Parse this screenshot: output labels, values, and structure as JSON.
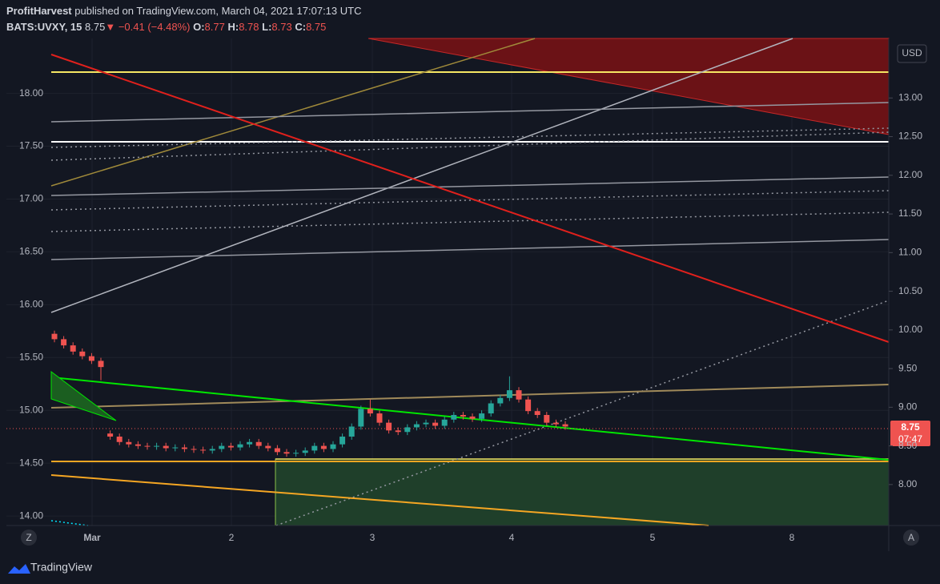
{
  "header": {
    "author": "ProfitHarvest",
    "published": "published on TradingView.com, March 04, 2021 17:07:13 UTC",
    "symbol": "BATS:UVXY, 15",
    "last": "8.75",
    "arrow": "▼",
    "change": "−0.41 (−4.48%)",
    "o_label": "O:",
    "o": "8.77",
    "h_label": "H:",
    "h": "8.78",
    "l_label": "L:",
    "l": "8.73",
    "c_label": "C:",
    "c": "8.75"
  },
  "chart_data": {
    "type": "candlestick",
    "currency": "USD",
    "xlabels": [
      "Mar",
      "2",
      "3",
      "4",
      "5",
      "8"
    ],
    "ylim": [
      13.91,
      18.52
    ],
    "yticks": [
      {
        "value": 18,
        "label": "18.00"
      },
      {
        "value": 17.5,
        "label": "17.50"
      },
      {
        "value": 17,
        "label": "17.00"
      },
      {
        "value": 16.5,
        "label": "16.50"
      },
      {
        "value": 16,
        "label": "16.00"
      },
      {
        "value": 15.5,
        "label": "15.50"
      },
      {
        "value": 15,
        "label": "15.00"
      },
      {
        "value": 14.5,
        "label": "14.50"
      },
      {
        "value": 14,
        "label": "14.00"
      }
    ],
    "y2lim": [
      7.47,
      13.77
    ],
    "y2ticks": [
      {
        "value": 13,
        "label": "13.00"
      },
      {
        "value": 12.5,
        "label": "12.50"
      },
      {
        "value": 12,
        "label": "12.00"
      },
      {
        "value": 11.5,
        "label": "11.50"
      },
      {
        "value": 11,
        "label": "11.00"
      },
      {
        "value": 10.5,
        "label": "10.50"
      },
      {
        "value": 10,
        "label": "10.00"
      },
      {
        "value": 9.5,
        "label": "9.50"
      },
      {
        "value": 9,
        "label": "9.00"
      },
      {
        "value": 8.5,
        "label": "8.50"
      },
      {
        "value": 8,
        "label": "8.00"
      }
    ],
    "grid": true,
    "up_color": "#26a69a",
    "down_color": "#ef5350",
    "series": [
      {
        "name": "BATS:UVXY",
        "axis": "y2",
        "open": [
          9.95,
          9.88,
          9.8,
          9.72,
          9.66,
          9.6,
          8.66,
          8.62,
          8.55,
          8.52,
          8.5,
          8.49,
          8.5,
          8.47,
          8.48,
          8.46,
          8.45,
          8.44,
          8.46,
          8.5,
          8.48,
          8.52,
          8.55,
          8.5,
          8.47,
          8.42,
          8.4,
          8.41,
          8.44,
          8.5,
          8.46,
          8.52,
          8.62,
          8.75,
          8.98,
          8.92,
          8.8,
          8.7,
          8.68,
          8.74,
          8.78,
          8.8,
          8.76,
          8.84,
          8.9,
          8.88,
          8.85,
          8.92,
          9.05,
          9.12,
          9.22,
          9.1,
          8.95,
          8.9,
          8.8,
          8.78
        ],
        "high": [
          9.99,
          9.92,
          9.84,
          9.76,
          9.7,
          9.64,
          8.7,
          8.66,
          8.59,
          8.56,
          8.54,
          8.54,
          8.54,
          8.52,
          8.52,
          8.5,
          8.49,
          8.5,
          8.54,
          8.54,
          8.56,
          8.59,
          8.59,
          8.54,
          8.51,
          8.46,
          8.45,
          8.48,
          8.54,
          8.54,
          8.56,
          8.66,
          8.79,
          9.02,
          9.1,
          8.96,
          8.84,
          8.74,
          8.78,
          8.82,
          8.84,
          8.84,
          8.88,
          8.94,
          8.94,
          8.92,
          8.96,
          9.09,
          9.16,
          9.4,
          9.26,
          9.14,
          8.99,
          8.94,
          8.84,
          8.82
        ],
        "low": [
          9.84,
          9.76,
          9.68,
          9.62,
          9.56,
          9.35,
          8.58,
          8.51,
          8.48,
          8.46,
          8.45,
          8.45,
          8.43,
          8.43,
          8.42,
          8.41,
          8.4,
          8.4,
          8.42,
          8.44,
          8.44,
          8.48,
          8.46,
          8.43,
          8.38,
          8.36,
          8.36,
          8.37,
          8.4,
          8.42,
          8.42,
          8.48,
          8.58,
          8.71,
          8.88,
          8.76,
          8.66,
          8.64,
          8.64,
          8.7,
          8.74,
          8.72,
          8.72,
          8.8,
          8.84,
          8.81,
          8.81,
          8.88,
          9.01,
          9.08,
          9.06,
          8.91,
          8.86,
          8.76,
          8.74,
          8.71
        ],
        "close": [
          9.88,
          9.8,
          9.72,
          9.66,
          9.6,
          9.52,
          8.62,
          8.55,
          8.52,
          8.5,
          8.49,
          8.5,
          8.47,
          8.48,
          8.46,
          8.45,
          8.44,
          8.46,
          8.5,
          8.48,
          8.52,
          8.55,
          8.5,
          8.47,
          8.42,
          8.4,
          8.41,
          8.44,
          8.5,
          8.46,
          8.52,
          8.62,
          8.75,
          8.98,
          8.92,
          8.8,
          8.7,
          8.68,
          8.74,
          8.78,
          8.8,
          8.76,
          8.84,
          8.9,
          8.88,
          8.85,
          8.92,
          9.05,
          9.12,
          9.22,
          9.1,
          8.95,
          8.9,
          8.8,
          8.78,
          8.75
        ]
      }
    ],
    "last_price": 8.75,
    "last_price_label": "8.75",
    "countdown": "07:47"
  },
  "footer": {
    "brand": "TradingView"
  },
  "buttons": {
    "left": "Z",
    "right": "A"
  }
}
